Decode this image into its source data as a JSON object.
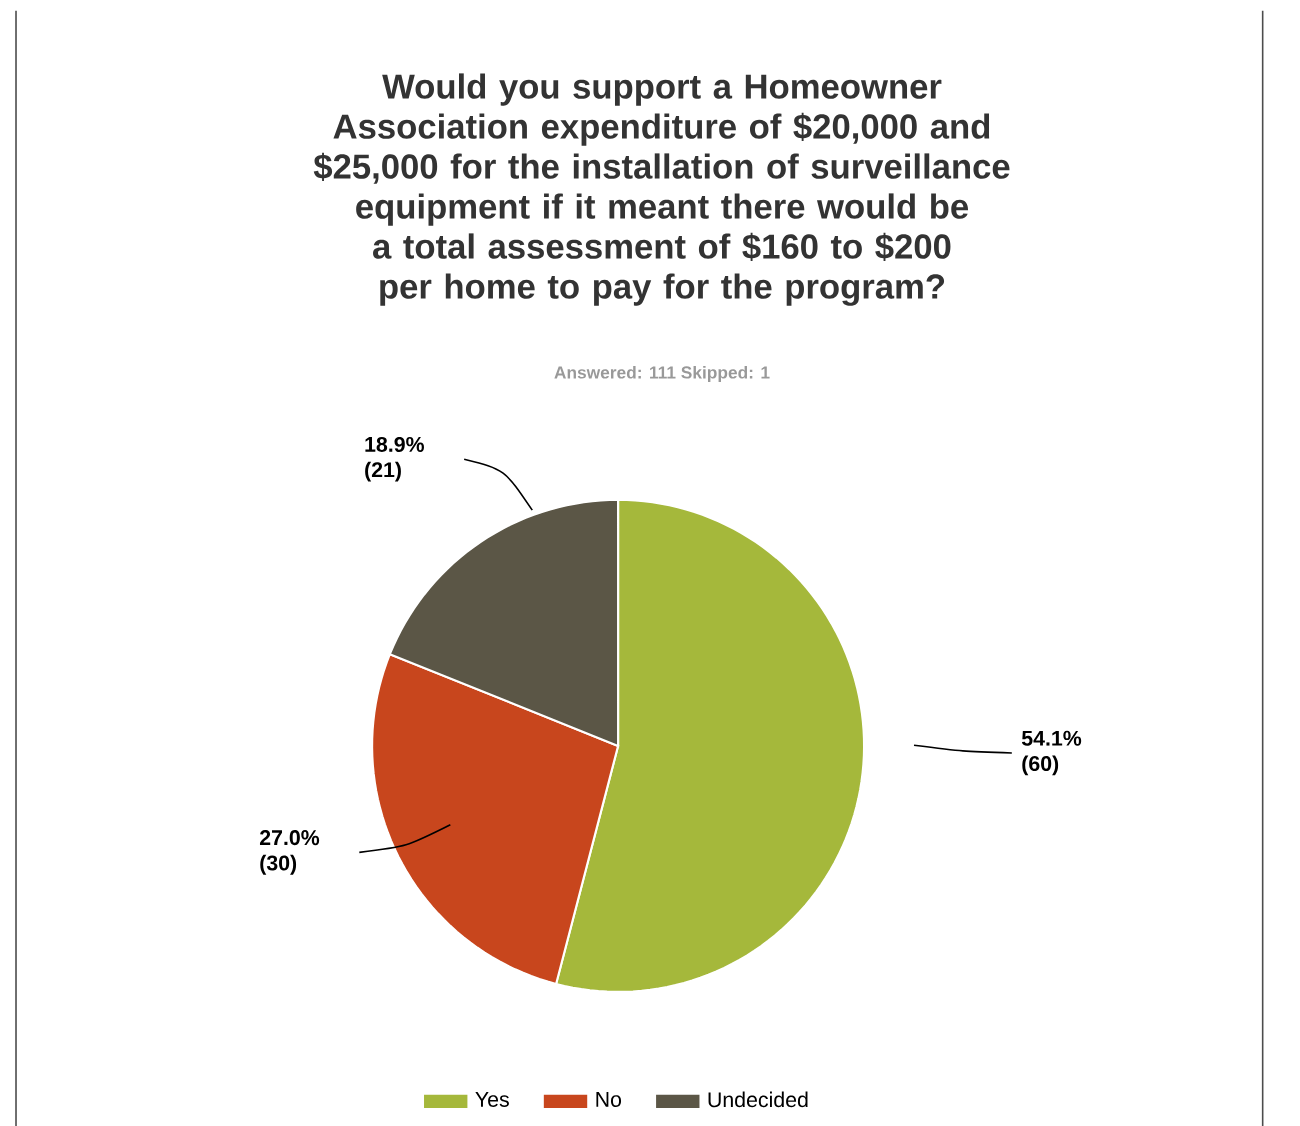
{
  "chart_data": {
    "type": "pie",
    "title": "Would you support a Homeowner Association expenditure of $20,000 and $25,000 for the installation of surveillance equipment if it meant there would be a total assessment of $160 to $200 per home to pay for the program?",
    "subtitle": "Answered: 111    Skipped: 1",
    "categories": [
      "Yes",
      "No",
      "Undecided"
    ],
    "values": [
      60,
      30,
      21
    ],
    "colors": [
      "#a5b83b",
      "#c8461d",
      "#5b5646"
    ],
    "value_labels": [
      "54.1% (60)",
      "27.0% (30)",
      "18.9% (21)"
    ],
    "legend": "bottom"
  }
}
